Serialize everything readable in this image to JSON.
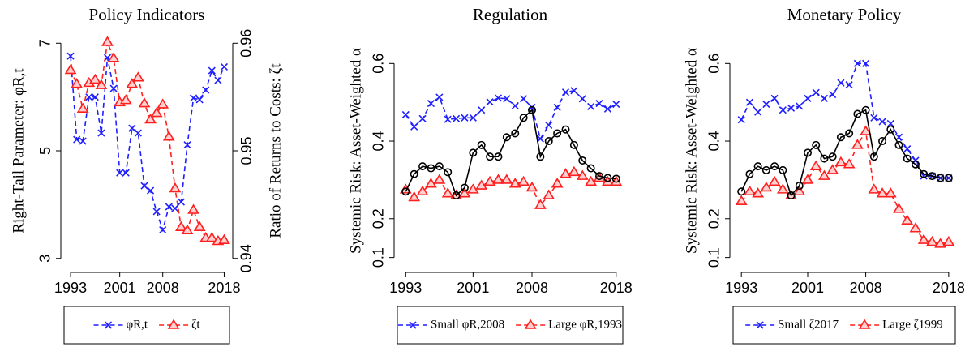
{
  "chart_data": [
    {
      "type": "line",
      "title": "Policy Indicators",
      "ylabel": "Right-Tail Parameter: φR,t",
      "y2label": "Ratio of Returns to Costs: ζt",
      "x": [
        1993,
        1994,
        1995,
        1996,
        1997,
        1998,
        1999,
        2000,
        2001,
        2002,
        2003,
        2004,
        2005,
        2006,
        2007,
        2008,
        2009,
        2010,
        2011,
        2012,
        2013,
        2014,
        2015,
        2016,
        2017,
        2018
      ],
      "xlim": [
        1992.2,
        2018.6
      ],
      "xticks": [
        1993,
        2001,
        2008,
        2018
      ],
      "ylim": [
        2.8,
        7.2
      ],
      "yticks": [
        3,
        5,
        7
      ],
      "y2lim": [
        0.939,
        0.961
      ],
      "y2ticks": [
        0.94,
        0.95,
        0.96
      ],
      "series": [
        {
          "name": "φR,t",
          "color": "#1f1fff",
          "marker": "x",
          "dash": true,
          "values": [
            6.76,
            5.21,
            5.18,
            6.0,
            6.0,
            5.33,
            6.73,
            6.16,
            4.59,
            4.59,
            5.42,
            5.33,
            4.35,
            4.26,
            3.87,
            3.53,
            3.96,
            3.93,
            4.05,
            5.11,
            5.98,
            5.95,
            6.13,
            6.49,
            6.31,
            6.56
          ]
        },
        {
          "name": "ζt",
          "color": "#ff1f1f",
          "marker": "triangle",
          "dash": true,
          "axis": "y2",
          "values": [
            0.9575,
            0.9562,
            0.9539,
            0.9563,
            0.9566,
            0.9561,
            0.9601,
            0.9586,
            0.9545,
            0.9547,
            0.9562,
            0.9568,
            0.9544,
            0.9529,
            0.9535,
            0.9543,
            0.9513,
            0.9465,
            0.9429,
            0.9426,
            0.9445,
            0.9429,
            0.9419,
            0.9419,
            0.9416,
            0.9417
          ]
        }
      ]
    },
    {
      "type": "line",
      "title": "Regulation",
      "ylabel": "Systemic Risk: Asset-Weighted α",
      "x": [
        1993,
        1994,
        1995,
        1996,
        1997,
        1998,
        1999,
        2000,
        2001,
        2002,
        2003,
        2004,
        2005,
        2006,
        2007,
        2008,
        2009,
        2010,
        2011,
        2012,
        2013,
        2014,
        2015,
        2016,
        2017,
        2018
      ],
      "xlim": [
        1992.2,
        2018.6
      ],
      "xticks": [
        1993,
        2001,
        2008,
        2018
      ],
      "ylim": [
        0.07,
        0.68
      ],
      "yticks": [
        0.1,
        0.2,
        0.4,
        0.6
      ],
      "series": [
        {
          "name": "Small φR,2008",
          "color": "#1f1fff",
          "marker": "x",
          "dash": true,
          "values": [
            0.468,
            0.437,
            0.458,
            0.497,
            0.513,
            0.456,
            0.458,
            0.46,
            0.46,
            0.48,
            0.501,
            0.511,
            0.509,
            0.491,
            0.509,
            0.487,
            0.406,
            0.441,
            0.487,
            0.526,
            0.53,
            0.509,
            0.489,
            0.497,
            0.483,
            0.495
          ]
        },
        {
          "name": "Large φR,1993",
          "color": "#ff1f1f",
          "marker": "triangle",
          "dash": true,
          "values": [
            0.275,
            0.255,
            0.27,
            0.29,
            0.3,
            0.265,
            0.26,
            0.265,
            0.275,
            0.285,
            0.295,
            0.3,
            0.3,
            0.29,
            0.295,
            0.28,
            0.235,
            0.26,
            0.29,
            0.315,
            0.32,
            0.31,
            0.295,
            0.305,
            0.295,
            0.295
          ]
        },
        {
          "color": "#000000",
          "marker": "circle",
          "dash": false,
          "values": [
            0.27,
            0.315,
            0.335,
            0.33,
            0.335,
            0.32,
            0.26,
            0.28,
            0.37,
            0.39,
            0.36,
            0.36,
            0.41,
            0.42,
            0.46,
            0.48,
            0.36,
            0.4,
            0.42,
            0.43,
            0.39,
            0.35,
            0.33,
            0.31,
            0.305,
            0.303
          ]
        }
      ]
    },
    {
      "type": "line",
      "title": "Monetary Policy",
      "ylabel": "Systemic Risk: Asset-Weighted α",
      "x": [
        1993,
        1994,
        1995,
        1996,
        1997,
        1998,
        1999,
        2000,
        2001,
        2002,
        2003,
        2004,
        2005,
        2006,
        2007,
        2008,
        2009,
        2010,
        2011,
        2012,
        2013,
        2014,
        2015,
        2016,
        2017,
        2018
      ],
      "xlim": [
        1992.2,
        2018.6
      ],
      "xticks": [
        1993,
        2001,
        2008,
        2018
      ],
      "ylim": [
        0.07,
        0.68
      ],
      "yticks": [
        0.1,
        0.2,
        0.4,
        0.6
      ],
      "series": [
        {
          "name": "Small ζ2017",
          "color": "#1f1fff",
          "marker": "x",
          "dash": true,
          "values": [
            0.455,
            0.5,
            0.475,
            0.495,
            0.51,
            0.48,
            0.485,
            0.49,
            0.51,
            0.525,
            0.51,
            0.52,
            0.55,
            0.545,
            0.6,
            0.6,
            0.46,
            0.45,
            0.445,
            0.41,
            0.38,
            0.35,
            0.31,
            0.31,
            0.305,
            0.305
          ]
        },
        {
          "name": "Large ζ1999",
          "color": "#ff1f1f",
          "marker": "triangle",
          "dash": true,
          "values": [
            0.245,
            0.27,
            0.265,
            0.28,
            0.295,
            0.275,
            0.26,
            0.27,
            0.3,
            0.335,
            0.31,
            0.325,
            0.345,
            0.34,
            0.39,
            0.425,
            0.275,
            0.265,
            0.265,
            0.225,
            0.195,
            0.175,
            0.145,
            0.14,
            0.135,
            0.14
          ]
        },
        {
          "color": "#000000",
          "marker": "circle",
          "dash": false,
          "values": [
            0.27,
            0.315,
            0.335,
            0.325,
            0.335,
            0.325,
            0.26,
            0.285,
            0.37,
            0.39,
            0.355,
            0.36,
            0.41,
            0.42,
            0.47,
            0.48,
            0.36,
            0.4,
            0.43,
            0.39,
            0.355,
            0.34,
            0.315,
            0.31,
            0.305,
            0.305
          ]
        }
      ]
    }
  ]
}
